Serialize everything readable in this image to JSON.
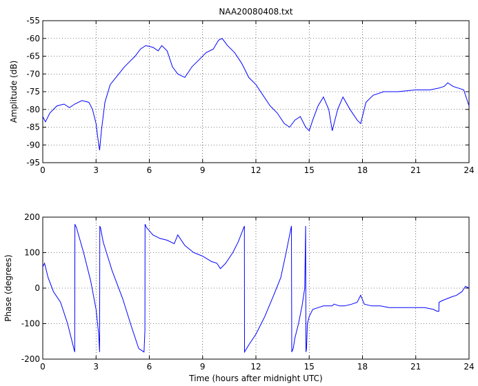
{
  "figure": {
    "title": "NAA20080408.txt",
    "line_color": "#0000ff"
  },
  "chart_data": [
    {
      "type": "line",
      "title": "NAA20080408.txt",
      "xlabel": "",
      "ylabel": "Amplitude (dB)",
      "xlim": [
        0,
        24
      ],
      "ylim": [
        -95,
        -55
      ],
      "xticks": [
        0,
        3,
        6,
        9,
        12,
        15,
        18,
        21,
        24
      ],
      "yticks": [
        -95,
        -90,
        -85,
        -80,
        -75,
        -70,
        -65,
        -60,
        -55
      ],
      "grid": true,
      "series": [
        {
          "x": [
            0,
            0.15,
            0.4,
            0.8,
            1.2,
            1.5,
            1.8,
            2.2,
            2.6,
            2.8,
            3.0,
            3.1,
            3.2,
            3.3,
            3.5,
            3.8,
            4.2,
            4.6,
            4.9,
            5.2,
            5.5,
            5.8,
            6.2,
            6.5,
            6.7,
            7.0,
            7.3,
            7.6,
            8.0,
            8.4,
            8.8,
            9.2,
            9.6,
            9.9,
            10.1,
            10.4,
            10.8,
            11.2,
            11.6,
            12.0,
            12.4,
            12.8,
            13.2,
            13.6,
            13.9,
            14.2,
            14.5,
            14.8,
            15.0,
            15.2,
            15.5,
            15.8,
            16.1,
            16.3,
            16.6,
            16.9,
            17.3,
            17.7,
            17.9,
            18.2,
            18.6,
            19.2,
            20.0,
            21.0,
            21.8,
            22.3,
            22.6,
            22.8,
            23.1,
            23.4,
            23.7,
            24.0
          ],
          "y": [
            -82,
            -83.5,
            -81,
            -79,
            -78.5,
            -79.5,
            -78.5,
            -77.5,
            -78,
            -80,
            -84,
            -88,
            -91.5,
            -86,
            -78,
            -73,
            -70.5,
            -68,
            -66.5,
            -65,
            -63,
            -62,
            -62.5,
            -63.5,
            -62,
            -63.5,
            -68,
            -70,
            -71,
            -68,
            -66,
            -64,
            -63,
            -60.5,
            -60,
            -62,
            -64,
            -67,
            -71,
            -73,
            -76,
            -79,
            -81,
            -84,
            -85,
            -83,
            -82,
            -85,
            -86,
            -83,
            -79,
            -76.5,
            -80,
            -86,
            -80,
            -76.5,
            -80,
            -83,
            -84,
            -78,
            -76,
            -75,
            -75,
            -74.5,
            -74.5,
            -74,
            -73.5,
            -72.5,
            -73.5,
            -74,
            -74.5,
            -79
          ]
        }
      ]
    },
    {
      "type": "line",
      "title": "",
      "xlabel": "Time (hours after midnight UTC)",
      "ylabel": "Phase (degrees)",
      "xlim": [
        0,
        24
      ],
      "ylim": [
        -200,
        200
      ],
      "xticks": [
        0,
        3,
        6,
        9,
        12,
        15,
        18,
        21,
        24
      ],
      "yticks": [
        -200,
        -100,
        0,
        100,
        200
      ],
      "grid": true,
      "series": [
        {
          "x": [
            0,
            0.1,
            0.3,
            0.6,
            1.0,
            1.4,
            1.8,
            1.81,
            1.9,
            2.3,
            2.7,
            3.0,
            3.15,
            3.2,
            3.21,
            3.25,
            3.4,
            3.9,
            4.5,
            5.0,
            5.4,
            5.7,
            5.75,
            5.76,
            5.85,
            6.2,
            6.6,
            7.0,
            7.4,
            7.6,
            8.0,
            8.5,
            9.0,
            9.5,
            9.8,
            10.0,
            10.3,
            10.7,
            11.0,
            11.35,
            11.36,
            11.6,
            12.0,
            12.5,
            13.0,
            13.4,
            13.7,
            13.9,
            14.0,
            14.02,
            14.1,
            14.2,
            14.4,
            14.6,
            14.75,
            14.8,
            14.82,
            14.85,
            14.9,
            15.0,
            15.2,
            15.5,
            15.8,
            16.1,
            16.3,
            16.4,
            16.7,
            17.0,
            17.4,
            17.7,
            17.9,
            18.1,
            18.5,
            19.0,
            19.5,
            20.0,
            20.5,
            21.0,
            21.5,
            22.0,
            22.2,
            22.3,
            22.31,
            22.5,
            23.0,
            23.3,
            23.6,
            23.8,
            24.0
          ],
          "y": [
            60,
            70,
            30,
            -10,
            -40,
            -100,
            -180,
            180,
            170,
            100,
            20,
            -60,
            -130,
            -180,
            175,
            170,
            130,
            50,
            -30,
            -110,
            -170,
            -180,
            -120,
            180,
            170,
            150,
            140,
            135,
            125,
            150,
            120,
            100,
            90,
            75,
            70,
            55,
            70,
            100,
            130,
            175,
            -180,
            -160,
            -130,
            -80,
            -20,
            30,
            100,
            150,
            175,
            -180,
            -170,
            -140,
            -100,
            -50,
            0,
            175,
            -180,
            -170,
            -100,
            -80,
            -60,
            -55,
            -50,
            -50,
            -50,
            -45,
            -50,
            -50,
            -45,
            -40,
            -20,
            -45,
            -50,
            -50,
            -55,
            -55,
            -55,
            -55,
            -55,
            -60,
            -65,
            -65,
            -40,
            -35,
            -25,
            -20,
            -10,
            5,
            0
          ]
        }
      ]
    }
  ]
}
